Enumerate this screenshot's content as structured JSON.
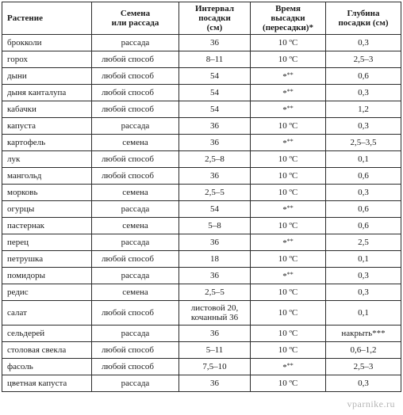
{
  "table": {
    "headers": [
      "Растение",
      "Семена\nили рассада",
      "Интервал\nпосадки\n(см)",
      "Время\nвысадки\n(пересадки)*",
      "Глубина\nпосадки (см)"
    ],
    "rows": [
      {
        "plant": "брокколи",
        "method": "рассада",
        "interval": "36",
        "time": "10 ºC",
        "depth": "0,3"
      },
      {
        "plant": "горох",
        "method": "любой способ",
        "interval": "8–11",
        "time": "10 ºC",
        "depth": "2,5–3"
      },
      {
        "plant": "дыни",
        "method": "любой способ",
        "interval": "54",
        "time": "*",
        "time_sup": "**",
        "depth": "0,6"
      },
      {
        "plant": "дыня канталупа",
        "method": "любой способ",
        "interval": "54",
        "time": "*",
        "time_sup": "**",
        "depth": "0,3"
      },
      {
        "plant": "кабачки",
        "method": "любой способ",
        "interval": "54",
        "time": "*",
        "time_sup": "**",
        "depth": "1,2"
      },
      {
        "plant": "капуста",
        "method": "рассада",
        "interval": "36",
        "time": "10 ºC",
        "depth": "0,3"
      },
      {
        "plant": "картофель",
        "method": "семена",
        "interval": "36",
        "time": "*",
        "time_sup": "**",
        "depth": "2,5–3,5"
      },
      {
        "plant": "лук",
        "method": "любой способ",
        "interval": "2,5–8",
        "time": "10 ºC",
        "depth": "0,1"
      },
      {
        "plant": "мангольд",
        "method": "любой способ",
        "interval": "36",
        "time": "10 ºC",
        "depth": "0,6"
      },
      {
        "plant": "морковь",
        "method": "семена",
        "interval": "2,5–5",
        "time": "10 ºC",
        "depth": "0,3"
      },
      {
        "plant": "огурцы",
        "method": "рассада",
        "interval": "54",
        "time": "*",
        "time_sup": "**",
        "depth": "0,6"
      },
      {
        "plant": "пастернак",
        "method": "семена",
        "interval": "5–8",
        "time": "10 ºC",
        "depth": "0,6"
      },
      {
        "plant": "перец",
        "method": "рассада",
        "interval": "36",
        "time": "*",
        "time_sup": "**",
        "depth": "2,5"
      },
      {
        "plant": "петрушка",
        "method": "любой способ",
        "interval": "18",
        "time": "10 ºC",
        "depth": "0,1"
      },
      {
        "plant": "помидоры",
        "method": "рассада",
        "interval": "36",
        "time": "*",
        "time_sup": "**",
        "depth": "0,3"
      },
      {
        "plant": "редис",
        "method": "семена",
        "interval": "2,5–5",
        "time": "10 ºC",
        "depth": "0,3"
      },
      {
        "plant": "салат",
        "method": "любой способ",
        "interval": "листовой 20,\nкочанный 36",
        "time": "10 ºC",
        "depth": "0,1"
      },
      {
        "plant": "сельдерей",
        "method": "рассада",
        "interval": "36",
        "time": "10 ºC",
        "depth": "накрыть***"
      },
      {
        "plant": "столовая свекла",
        "method": "любой способ",
        "interval": "5–11",
        "time": "10 ºC",
        "depth": "0,6–1,2"
      },
      {
        "plant": "фасоль",
        "method": "любой способ",
        "interval": "7,5–10",
        "time": "*",
        "time_sup": "**",
        "depth": "2,5–3"
      },
      {
        "plant": "цветная капуста",
        "method": "рассада",
        "interval": "36",
        "time": "10 ºC",
        "depth": "0,3"
      }
    ]
  },
  "watermark": "vparnike.ru"
}
